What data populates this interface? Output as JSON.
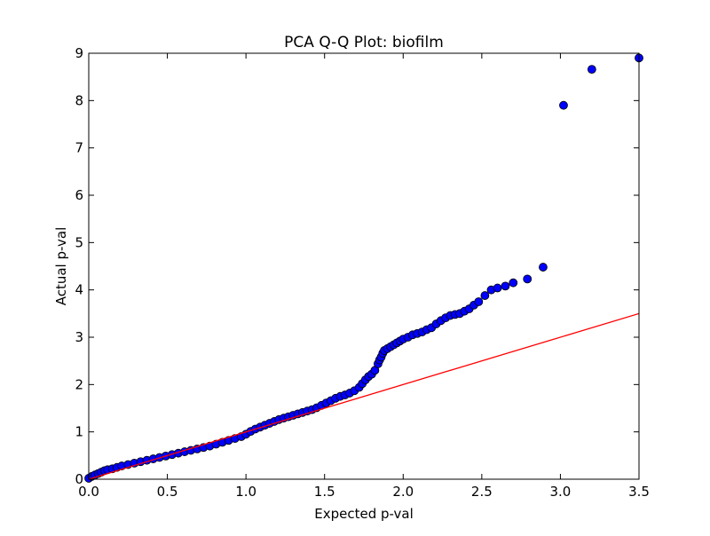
{
  "chart_data": {
    "type": "scatter",
    "title": "PCA Q-Q Plot: biofilm",
    "xlabel": "Expected p-val",
    "ylabel": "Actual p-val",
    "xlim": [
      0,
      3.5
    ],
    "ylim": [
      0,
      9
    ],
    "x_ticks": [
      "0.0",
      "0.5",
      "1.0",
      "1.5",
      "2.0",
      "2.5",
      "3.0",
      "3.5"
    ],
    "y_ticks": [
      "0",
      "1",
      "2",
      "3",
      "4",
      "5",
      "6",
      "7",
      "8",
      "9"
    ],
    "grid": false,
    "legend": "none",
    "colors": {
      "points": "#0000ff",
      "point_edge": "#000000",
      "reference_line": "#ff0000"
    },
    "reference_line": {
      "x": [
        0,
        3.5
      ],
      "y": [
        0,
        3.5
      ]
    },
    "series": [
      {
        "x": [
          0.0,
          0.02,
          0.04,
          0.06,
          0.08,
          0.1,
          0.12,
          0.15,
          0.18,
          0.21,
          0.25,
          0.29,
          0.33,
          0.37,
          0.41,
          0.45,
          0.49,
          0.53,
          0.57,
          0.61,
          0.65,
          0.69,
          0.73,
          0.77,
          0.81,
          0.85,
          0.89,
          0.93,
          0.97,
          1.0,
          1.03,
          1.06,
          1.09,
          1.12,
          1.15,
          1.18,
          1.21,
          1.24,
          1.27,
          1.3,
          1.33,
          1.36,
          1.39,
          1.42,
          1.45,
          1.48,
          1.51,
          1.54,
          1.57,
          1.6,
          1.63,
          1.66,
          1.69,
          1.72,
          1.74,
          1.76,
          1.78,
          1.8,
          1.82,
          1.84,
          1.85,
          1.86,
          1.87,
          1.88,
          1.9,
          1.92,
          1.94,
          1.96,
          1.98,
          2.0,
          2.03,
          2.06,
          2.09,
          2.12,
          2.15,
          2.18,
          2.21,
          2.24,
          2.27,
          2.3,
          2.33,
          2.36,
          2.39,
          2.42,
          2.45,
          2.48,
          2.52,
          2.56,
          2.6,
          2.65,
          2.7,
          2.79,
          2.89,
          3.02,
          3.2,
          3.5
        ],
        "y": [
          0.02,
          0.06,
          0.09,
          0.12,
          0.15,
          0.18,
          0.2,
          0.22,
          0.25,
          0.28,
          0.31,
          0.34,
          0.37,
          0.4,
          0.43,
          0.46,
          0.49,
          0.52,
          0.55,
          0.58,
          0.61,
          0.64,
          0.67,
          0.7,
          0.74,
          0.78,
          0.82,
          0.86,
          0.9,
          0.95,
          1.01,
          1.06,
          1.1,
          1.14,
          1.18,
          1.22,
          1.26,
          1.29,
          1.32,
          1.35,
          1.38,
          1.41,
          1.44,
          1.47,
          1.51,
          1.56,
          1.61,
          1.66,
          1.71,
          1.75,
          1.78,
          1.82,
          1.87,
          1.94,
          2.02,
          2.1,
          2.17,
          2.22,
          2.3,
          2.44,
          2.52,
          2.58,
          2.66,
          2.72,
          2.76,
          2.8,
          2.84,
          2.88,
          2.92,
          2.96,
          3.0,
          3.05,
          3.08,
          3.11,
          3.16,
          3.2,
          3.28,
          3.35,
          3.41,
          3.46,
          3.48,
          3.5,
          3.55,
          3.6,
          3.68,
          3.75,
          3.88,
          4.0,
          4.04,
          4.08,
          4.15,
          4.23,
          4.48,
          7.9,
          8.66,
          8.9
        ]
      }
    ]
  }
}
